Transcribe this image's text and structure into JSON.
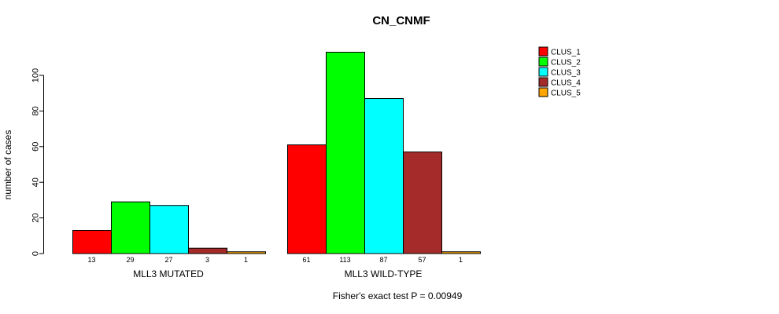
{
  "chart_data": {
    "type": "bar",
    "title": "CN_CNMF",
    "ylabel": "number of cases",
    "footnote": "Fisher's exact test P = 0.00949",
    "ylim": [
      0,
      113
    ],
    "yticks": [
      0,
      20,
      40,
      60,
      80,
      100
    ],
    "grid": false,
    "legend_position": "right",
    "series": [
      "CLUS_1",
      "CLUS_2",
      "CLUS_3",
      "CLUS_4",
      "CLUS_5"
    ],
    "colors": [
      "#ff0000",
      "#00ff00",
      "#00ffff",
      "#a52a2a",
      "#ffa500"
    ],
    "groups": [
      {
        "label": "MLL3 MUTATED",
        "values": [
          13,
          29,
          27,
          3,
          1
        ]
      },
      {
        "label": "MLL3 WILD-TYPE",
        "values": [
          61,
          113,
          87,
          57,
          1
        ]
      }
    ]
  }
}
